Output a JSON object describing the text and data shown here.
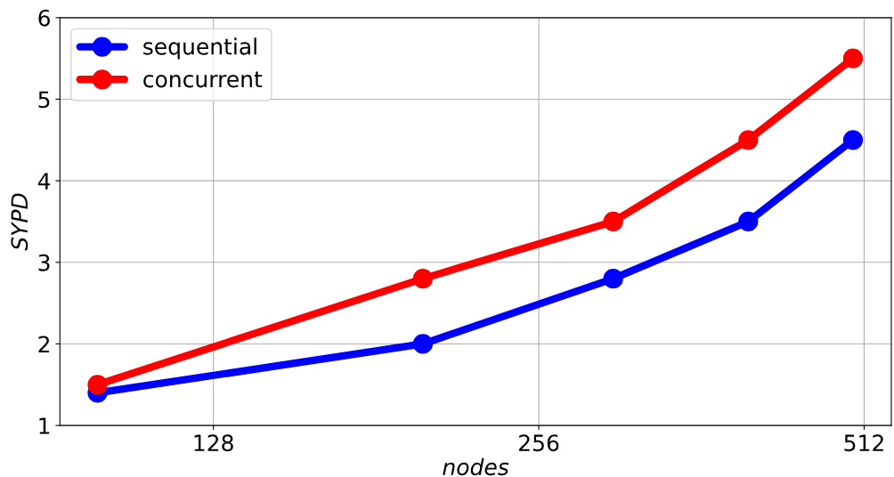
{
  "chart_data": {
    "type": "line",
    "xlabel": "nodes",
    "ylabel": "SYPD",
    "x": [
      100,
      200,
      300,
      400,
      500
    ],
    "series": [
      {
        "name": "sequential",
        "color": "#0000ff",
        "values": [
          1.4,
          2.0,
          2.8,
          3.5,
          4.5
        ]
      },
      {
        "name": "concurrent",
        "color": "#ff0000",
        "values": [
          1.5,
          2.8,
          3.5,
          4.5,
          5.5
        ]
      }
    ],
    "log": "x",
    "xlim": [
      92.3,
      542.5
    ],
    "xticks": [
      128,
      256,
      512
    ],
    "ylim": [
      1,
      6
    ],
    "yticks": [
      1,
      2,
      3,
      4,
      5,
      6
    ],
    "grid": true,
    "legend": "top left",
    "marker": "circle",
    "line_style": "solid"
  }
}
